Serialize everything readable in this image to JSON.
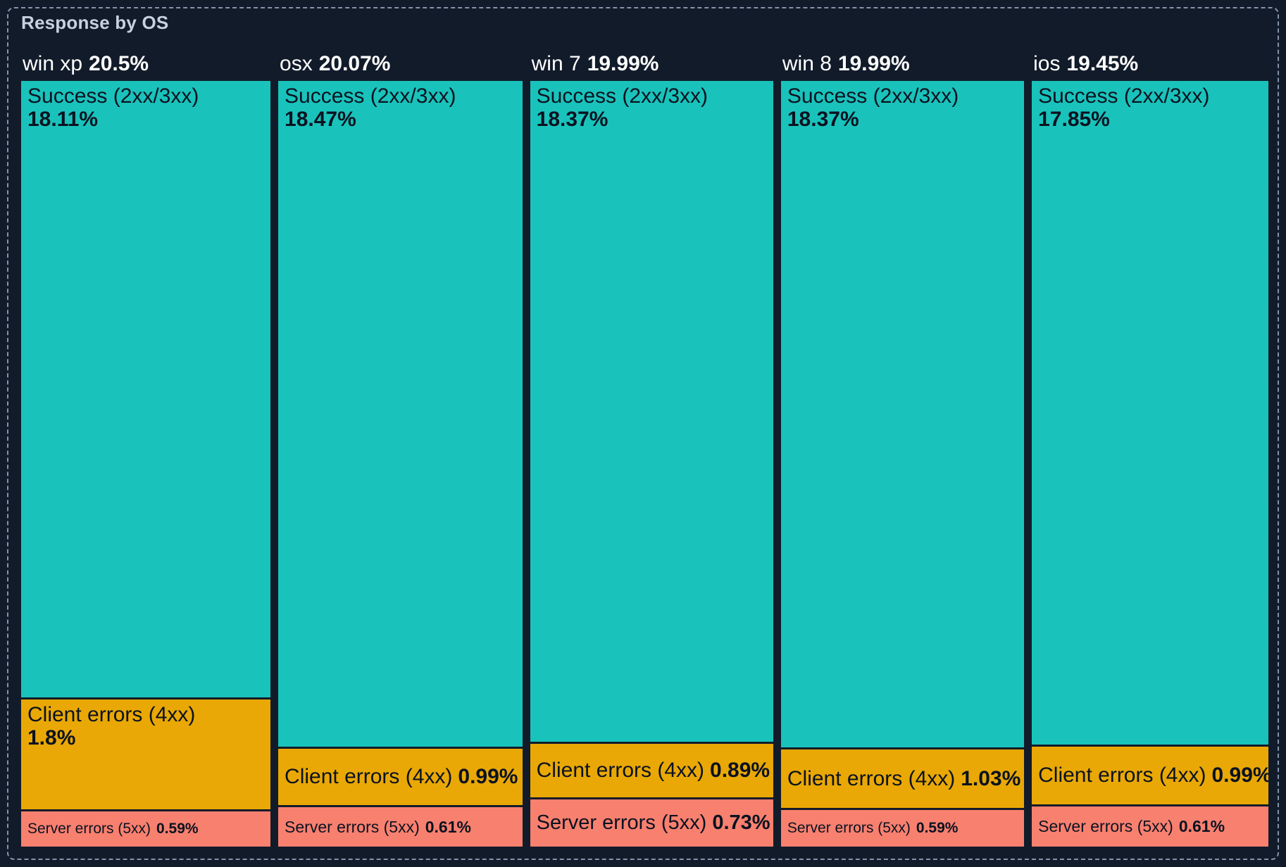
{
  "panel": {
    "title": "Response by OS"
  },
  "colors": {
    "background": "#121B2A",
    "panel_border": "#8494A9",
    "title_text": "#C8D1DE",
    "header_text": "#FFFFFF",
    "block_text": "#0B1220",
    "success": "#19C3BB",
    "client_errors": "#E9A805",
    "server_errors": "#F8806F"
  },
  "chart_data": {
    "type": "treemap",
    "title": "Response by OS",
    "categories": [
      "win xp",
      "osx",
      "win 7",
      "win 8",
      "ios"
    ],
    "totals": [
      20.5,
      20.07,
      19.99,
      19.99,
      19.45
    ],
    "series": [
      {
        "name": "Success (2xx/3xx)",
        "values": [
          18.11,
          18.47,
          18.37,
          18.37,
          17.85
        ],
        "color": "#19C3BB"
      },
      {
        "name": "Client errors (4xx)",
        "values": [
          1.8,
          0.99,
          0.89,
          1.03,
          0.99
        ],
        "color": "#E9A805"
      },
      {
        "name": "Server errors (5xx)",
        "values": [
          0.59,
          0.61,
          0.73,
          0.59,
          0.61
        ],
        "color": "#F8806F"
      }
    ],
    "layout": {
      "column_widths_proportional_to": "totals",
      "segment_heights_normalized_per_column": true,
      "legend": "none"
    },
    "columns": [
      {
        "os": "win xp",
        "total_label": "20.5%",
        "success": {
          "label": "Success (2xx/3xx)",
          "pct": "18.11%"
        },
        "client": {
          "label": "Client errors (4xx)",
          "pct": "1.8%"
        },
        "server": {
          "label": "Server errors (5xx)",
          "pct": "0.59%"
        }
      },
      {
        "os": "osx",
        "total_label": "20.07%",
        "success": {
          "label": "Success (2xx/3xx)",
          "pct": "18.47%"
        },
        "client": {
          "label": "Client errors (4xx)",
          "pct": "0.99%"
        },
        "server": {
          "label": "Server errors (5xx)",
          "pct": "0.61%"
        }
      },
      {
        "os": "win 7",
        "total_label": "19.99%",
        "success": {
          "label": "Success (2xx/3xx)",
          "pct": "18.37%"
        },
        "client": {
          "label": "Client errors (4xx)",
          "pct": "0.89%"
        },
        "server": {
          "label": "Server errors (5xx)",
          "pct": "0.73%"
        }
      },
      {
        "os": "win 8",
        "total_label": "19.99%",
        "success": {
          "label": "Success (2xx/3xx)",
          "pct": "18.37%"
        },
        "client": {
          "label": "Client errors (4xx)",
          "pct": "1.03%"
        },
        "server": {
          "label": "Server errors (5xx)",
          "pct": "0.59%"
        }
      },
      {
        "os": "ios",
        "total_label": "19.45%",
        "success": {
          "label": "Success (2xx/3xx)",
          "pct": "17.85%"
        },
        "client": {
          "label": "Client errors (4xx)",
          "pct": "0.99%"
        },
        "server": {
          "label": "Server errors (5xx)",
          "pct": "0.61%"
        }
      }
    ]
  }
}
